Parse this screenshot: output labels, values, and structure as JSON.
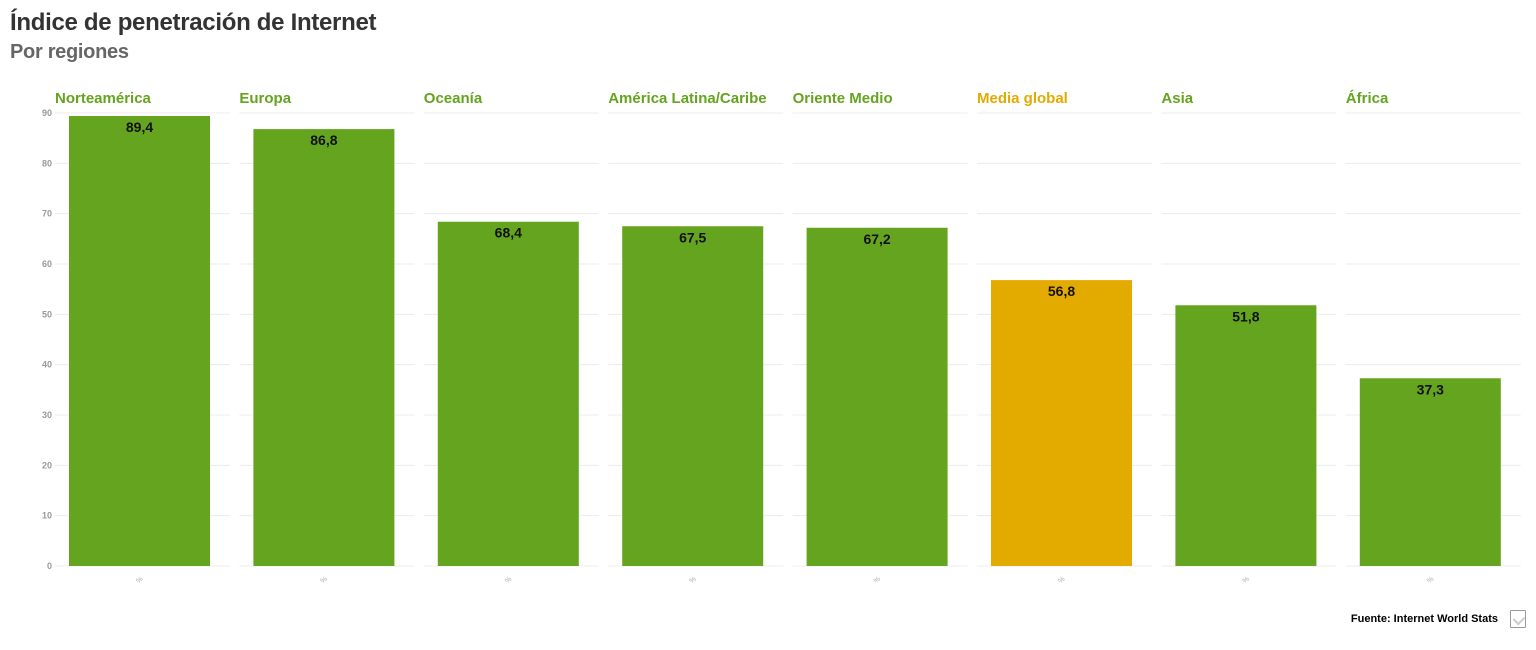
{
  "chart_data": {
    "type": "bar",
    "title": "Índice de penetración de Internet",
    "subtitle": "Por regiones",
    "categories": [
      "Norteamérica",
      "Europa",
      "Oceanía",
      "América Latina/Caribe",
      "Oriente Medio",
      "Media global",
      "Asia",
      "África"
    ],
    "values": [
      89.4,
      86.8,
      68.4,
      67.5,
      67.2,
      56.8,
      51.8,
      37.3
    ],
    "value_labels": [
      "89,4",
      "86,8",
      "68,4",
      "67,5",
      "67,2",
      "56,8",
      "51,8",
      "37,3"
    ],
    "highlight": [
      "Media global"
    ],
    "x_tick_label": "%",
    "yticks": [
      "0",
      "10",
      "20",
      "30",
      "40",
      "50",
      "60",
      "70",
      "80",
      "90"
    ],
    "ylim": [
      0,
      90
    ],
    "grid": true,
    "legend": "none",
    "colors": {
      "bar": "#65a41e",
      "highlight": "#e3aa00",
      "facet_label": "#65a41e",
      "facet_label_highlight": "#e3aa00"
    }
  },
  "source": "Fuente: Internet World Stats"
}
